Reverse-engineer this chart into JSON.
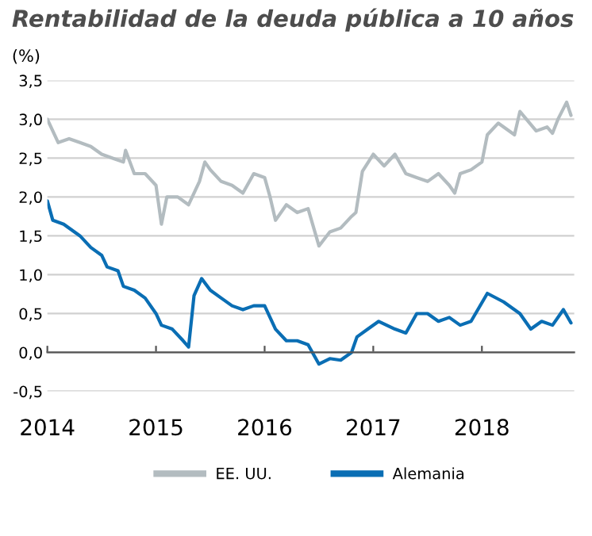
{
  "chart_data": {
    "type": "line",
    "title": "Rentabilidad de la deuda pública a 10 años",
    "ylabel": "(%)",
    "xlim": [
      2014,
      2018.85
    ],
    "xticks": [
      2014,
      2015,
      2016,
      2017,
      2018
    ],
    "ylim": [
      -0.5,
      3.5
    ],
    "yticks": [
      {
        "value": -0.5,
        "label": "-0,5"
      },
      {
        "value": 0,
        "label": "0,0"
      },
      {
        "value": 0.5,
        "label": "0,5"
      },
      {
        "value": 1,
        "label": "1,0"
      },
      {
        "value": 1.5,
        "label": "1,5"
      },
      {
        "value": 2,
        "label": "2,0"
      },
      {
        "value": 2.5,
        "label": "2,5"
      },
      {
        "value": 3,
        "label": "3,0"
      },
      {
        "value": 3.5,
        "label": "3,5"
      }
    ],
    "grid": "y",
    "legend": "bottom",
    "line_style": "solid",
    "series": [
      {
        "name": "EE. UU.",
        "color": "#b3bcc0",
        "x": [
          2014.0,
          2014.1,
          2014.2,
          2014.3,
          2014.4,
          2014.5,
          2014.6,
          2014.7,
          2014.72,
          2014.8,
          2014.9,
          2015.0,
          2015.05,
          2015.1,
          2015.2,
          2015.3,
          2015.4,
          2015.45,
          2015.5,
          2015.6,
          2015.7,
          2015.8,
          2015.9,
          2016.0,
          2016.05,
          2016.1,
          2016.2,
          2016.3,
          2016.4,
          2016.5,
          2016.6,
          2016.7,
          2016.8,
          2016.84,
          2016.9,
          2017.0,
          2017.1,
          2017.2,
          2017.3,
          2017.4,
          2017.5,
          2017.6,
          2017.7,
          2017.75,
          2017.8,
          2017.9,
          2018.0,
          2018.05,
          2018.15,
          2018.3,
          2018.35,
          2018.5,
          2018.6,
          2018.65,
          2018.7,
          2018.78,
          2018.82
        ],
        "values": [
          3.0,
          2.7,
          2.75,
          2.7,
          2.65,
          2.55,
          2.5,
          2.45,
          2.6,
          2.3,
          2.3,
          2.15,
          1.65,
          2.0,
          2.0,
          1.9,
          2.2,
          2.45,
          2.35,
          2.2,
          2.15,
          2.05,
          2.3,
          2.25,
          2.0,
          1.7,
          1.9,
          1.8,
          1.85,
          1.37,
          1.55,
          1.6,
          1.75,
          1.8,
          2.33,
          2.55,
          2.4,
          2.55,
          2.3,
          2.25,
          2.2,
          2.3,
          2.15,
          2.05,
          2.3,
          2.35,
          2.45,
          2.8,
          2.95,
          2.8,
          3.1,
          2.85,
          2.9,
          2.82,
          3.0,
          3.22,
          3.05
        ]
      },
      {
        "name": "Alemania",
        "color": "#0a6eb4",
        "x": [
          2014.0,
          2014.05,
          2014.15,
          2014.3,
          2014.4,
          2014.5,
          2014.55,
          2014.65,
          2014.7,
          2014.8,
          2014.9,
          2015.0,
          2015.05,
          2015.15,
          2015.25,
          2015.3,
          2015.35,
          2015.42,
          2015.5,
          2015.6,
          2015.7,
          2015.8,
          2015.9,
          2016.0,
          2016.1,
          2016.2,
          2016.3,
          2016.4,
          2016.5,
          2016.6,
          2016.7,
          2016.8,
          2016.85,
          2016.95,
          2017.05,
          2017.2,
          2017.3,
          2017.4,
          2017.5,
          2017.6,
          2017.7,
          2017.8,
          2017.9,
          2018.05,
          2018.2,
          2018.35,
          2018.45,
          2018.55,
          2018.65,
          2018.75,
          2018.82
        ],
        "values": [
          1.95,
          1.7,
          1.65,
          1.5,
          1.35,
          1.25,
          1.1,
          1.05,
          0.85,
          0.8,
          0.7,
          0.5,
          0.35,
          0.3,
          0.15,
          0.07,
          0.73,
          0.95,
          0.8,
          0.7,
          0.6,
          0.55,
          0.6,
          0.6,
          0.3,
          0.15,
          0.15,
          0.1,
          -0.15,
          -0.08,
          -0.1,
          0.0,
          0.2,
          0.3,
          0.4,
          0.3,
          0.25,
          0.5,
          0.5,
          0.4,
          0.45,
          0.35,
          0.4,
          0.76,
          0.65,
          0.5,
          0.3,
          0.4,
          0.35,
          0.55,
          0.38
        ]
      }
    ]
  }
}
